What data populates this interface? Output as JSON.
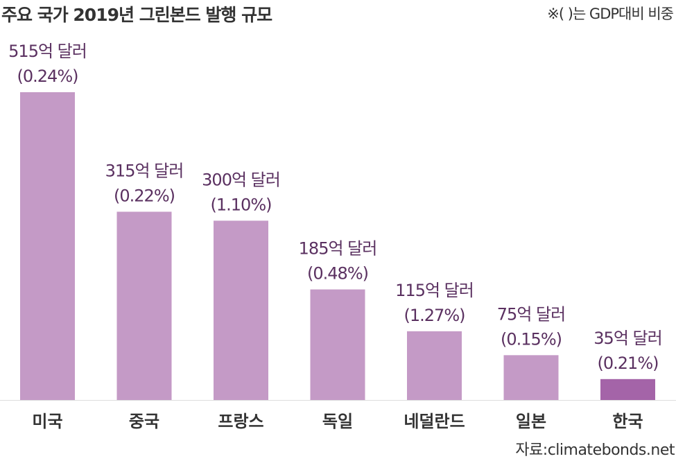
{
  "header": {
    "title": "주요 국가 2019년 그린본드 발행 규모",
    "note": "※(    )는 GDP대비 비중"
  },
  "footer": {
    "source": "자료:climatebonds.net"
  },
  "colors": {
    "bar": "#c49ac6",
    "highlight_bar": "#a464a8",
    "baseline": "#dddddd"
  },
  "chart_data": {
    "type": "bar",
    "title": "주요 국가 2019년 그린본드 발행 규모",
    "categories": [
      "미국",
      "중국",
      "프랑스",
      "독일",
      "네덜란드",
      "일본",
      "한국"
    ],
    "values": [
      515,
      315,
      300,
      185,
      115,
      75,
      35
    ],
    "value_labels": [
      "515억 달러",
      "315억 달러",
      "300억 달러",
      "185억 달러",
      "115억 달러",
      "75억 달러",
      "35억 달러"
    ],
    "gdp_share_labels": [
      "(0.24%)",
      "(0.22%)",
      "(1.10%)",
      "(0.48%)",
      "(1.27%)",
      "(0.15%)",
      "(0.21%)"
    ],
    "highlight_index": 6,
    "ylim": [
      0,
      515
    ],
    "grid": false,
    "xlabel": "",
    "ylabel": ""
  }
}
